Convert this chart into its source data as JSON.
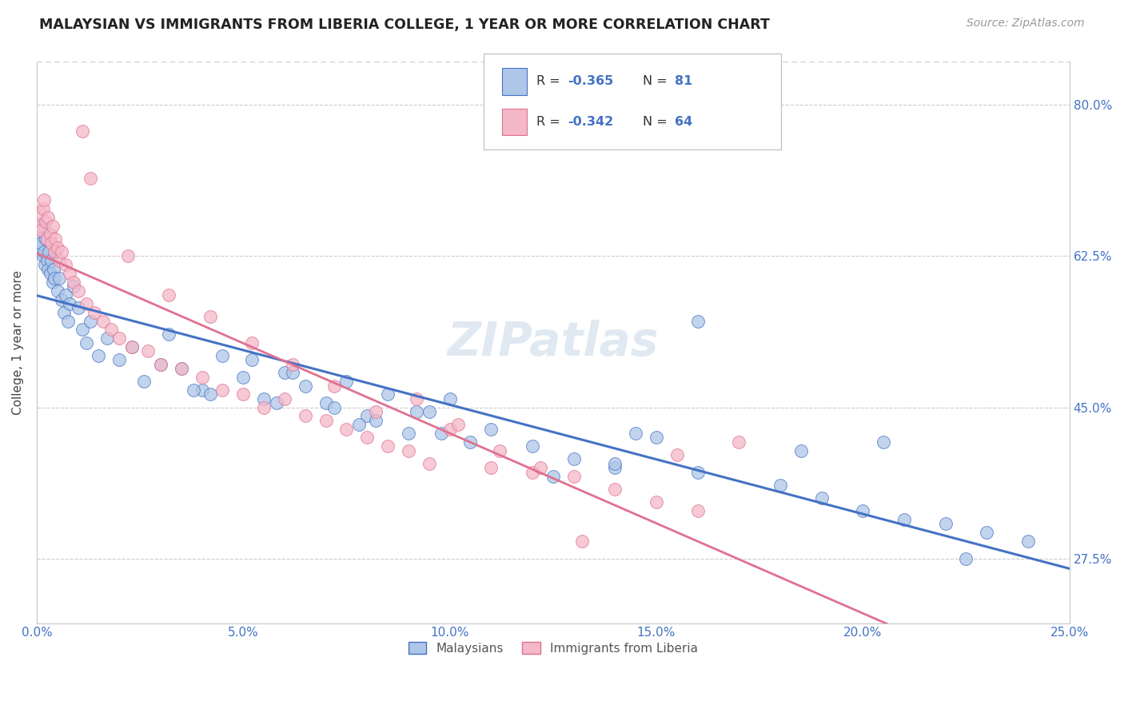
{
  "title": "MALAYSIAN VS IMMIGRANTS FROM LIBERIA COLLEGE, 1 YEAR OR MORE CORRELATION CHART",
  "source": "Source: ZipAtlas.com",
  "xlabel_vals": [
    0.0,
    5.0,
    10.0,
    15.0,
    20.0,
    25.0
  ],
  "ylabel_vals": [
    27.5,
    45.0,
    62.5,
    80.0
  ],
  "ylabel_label": "College, 1 year or more",
  "legend_labels": [
    "Malaysians",
    "Immigrants from Liberia"
  ],
  "R_malaysian": -0.365,
  "N_malaysian": 81,
  "R_liberia": -0.342,
  "N_liberia": 64,
  "color_malaysian": "#aec6e8",
  "color_liberia": "#f4b8c8",
  "line_color_malaysian": "#4472c4",
  "line_color_liberia": "#e07090",
  "text_color_blue": "#4472c4",
  "background_color": "#ffffff",
  "grid_color": "#cccccc",
  "xmin": 0.0,
  "xmax": 25.0,
  "ymin": 20.0,
  "ymax": 85.0,
  "malaysian_x": [
    0.05,
    0.08,
    0.1,
    0.12,
    0.15,
    0.18,
    0.2,
    0.22,
    0.25,
    0.28,
    0.3,
    0.32,
    0.35,
    0.38,
    0.4,
    0.42,
    0.45,
    0.5,
    0.55,
    0.6,
    0.65,
    0.7,
    0.75,
    0.8,
    0.9,
    1.0,
    1.1,
    1.2,
    1.3,
    1.5,
    1.7,
    2.0,
    2.3,
    2.6,
    3.0,
    3.5,
    4.0,
    4.5,
    5.0,
    5.5,
    6.0,
    6.5,
    7.0,
    7.5,
    8.0,
    8.5,
    9.0,
    9.5,
    10.0,
    11.0,
    12.0,
    13.0,
    14.0,
    14.5,
    15.0,
    16.0,
    18.0,
    19.0,
    20.0,
    21.0,
    22.0,
    23.0,
    24.0,
    3.2,
    4.2,
    5.2,
    6.2,
    7.2,
    8.2,
    9.2,
    10.5,
    12.5,
    14.0,
    16.0,
    18.5,
    20.5,
    22.5,
    3.8,
    5.8,
    7.8,
    9.8
  ],
  "malaysian_y": [
    63.5,
    65.0,
    64.0,
    66.0,
    62.5,
    63.0,
    61.5,
    64.5,
    62.0,
    61.0,
    63.0,
    60.5,
    62.0,
    59.5,
    61.0,
    60.0,
    63.0,
    58.5,
    60.0,
    57.5,
    56.0,
    58.0,
    55.0,
    57.0,
    59.0,
    56.5,
    54.0,
    52.5,
    55.0,
    51.0,
    53.0,
    50.5,
    52.0,
    48.0,
    50.0,
    49.5,
    47.0,
    51.0,
    48.5,
    46.0,
    49.0,
    47.5,
    45.5,
    48.0,
    44.0,
    46.5,
    42.0,
    44.5,
    46.0,
    42.5,
    40.5,
    39.0,
    38.0,
    42.0,
    41.5,
    37.5,
    36.0,
    34.5,
    33.0,
    32.0,
    31.5,
    30.5,
    29.5,
    53.5,
    46.5,
    50.5,
    49.0,
    45.0,
    43.5,
    44.5,
    41.0,
    37.0,
    38.5,
    55.0,
    40.0,
    41.0,
    27.5,
    47.0,
    45.5,
    43.0,
    42.0
  ],
  "liberia_x": [
    0.05,
    0.08,
    0.12,
    0.15,
    0.18,
    0.22,
    0.25,
    0.28,
    0.32,
    0.35,
    0.38,
    0.42,
    0.45,
    0.5,
    0.55,
    0.6,
    0.7,
    0.8,
    0.9,
    1.0,
    1.2,
    1.4,
    1.6,
    1.8,
    2.0,
    2.3,
    2.7,
    3.0,
    3.5,
    4.0,
    4.5,
    5.0,
    5.5,
    6.0,
    6.5,
    7.0,
    7.5,
    8.0,
    8.5,
    9.0,
    9.5,
    10.0,
    11.0,
    12.0,
    13.0,
    14.0,
    15.0,
    16.0,
    17.0,
    1.1,
    1.3,
    2.2,
    3.2,
    4.2,
    5.2,
    6.2,
    7.2,
    8.2,
    9.2,
    10.2,
    11.2,
    12.2,
    13.2,
    15.5
  ],
  "liberia_y": [
    66.0,
    67.5,
    65.5,
    68.0,
    69.0,
    66.5,
    64.5,
    67.0,
    65.0,
    64.0,
    66.0,
    63.0,
    64.5,
    63.5,
    62.0,
    63.0,
    61.5,
    60.5,
    59.5,
    58.5,
    57.0,
    56.0,
    55.0,
    54.0,
    53.0,
    52.0,
    51.5,
    50.0,
    49.5,
    48.5,
    47.0,
    46.5,
    45.0,
    46.0,
    44.0,
    43.5,
    42.5,
    41.5,
    40.5,
    40.0,
    38.5,
    42.5,
    38.0,
    37.5,
    37.0,
    35.5,
    34.0,
    33.0,
    41.0,
    77.0,
    71.5,
    62.5,
    58.0,
    55.5,
    52.5,
    50.0,
    47.5,
    44.5,
    46.0,
    43.0,
    40.0,
    38.0,
    29.5,
    39.5
  ]
}
